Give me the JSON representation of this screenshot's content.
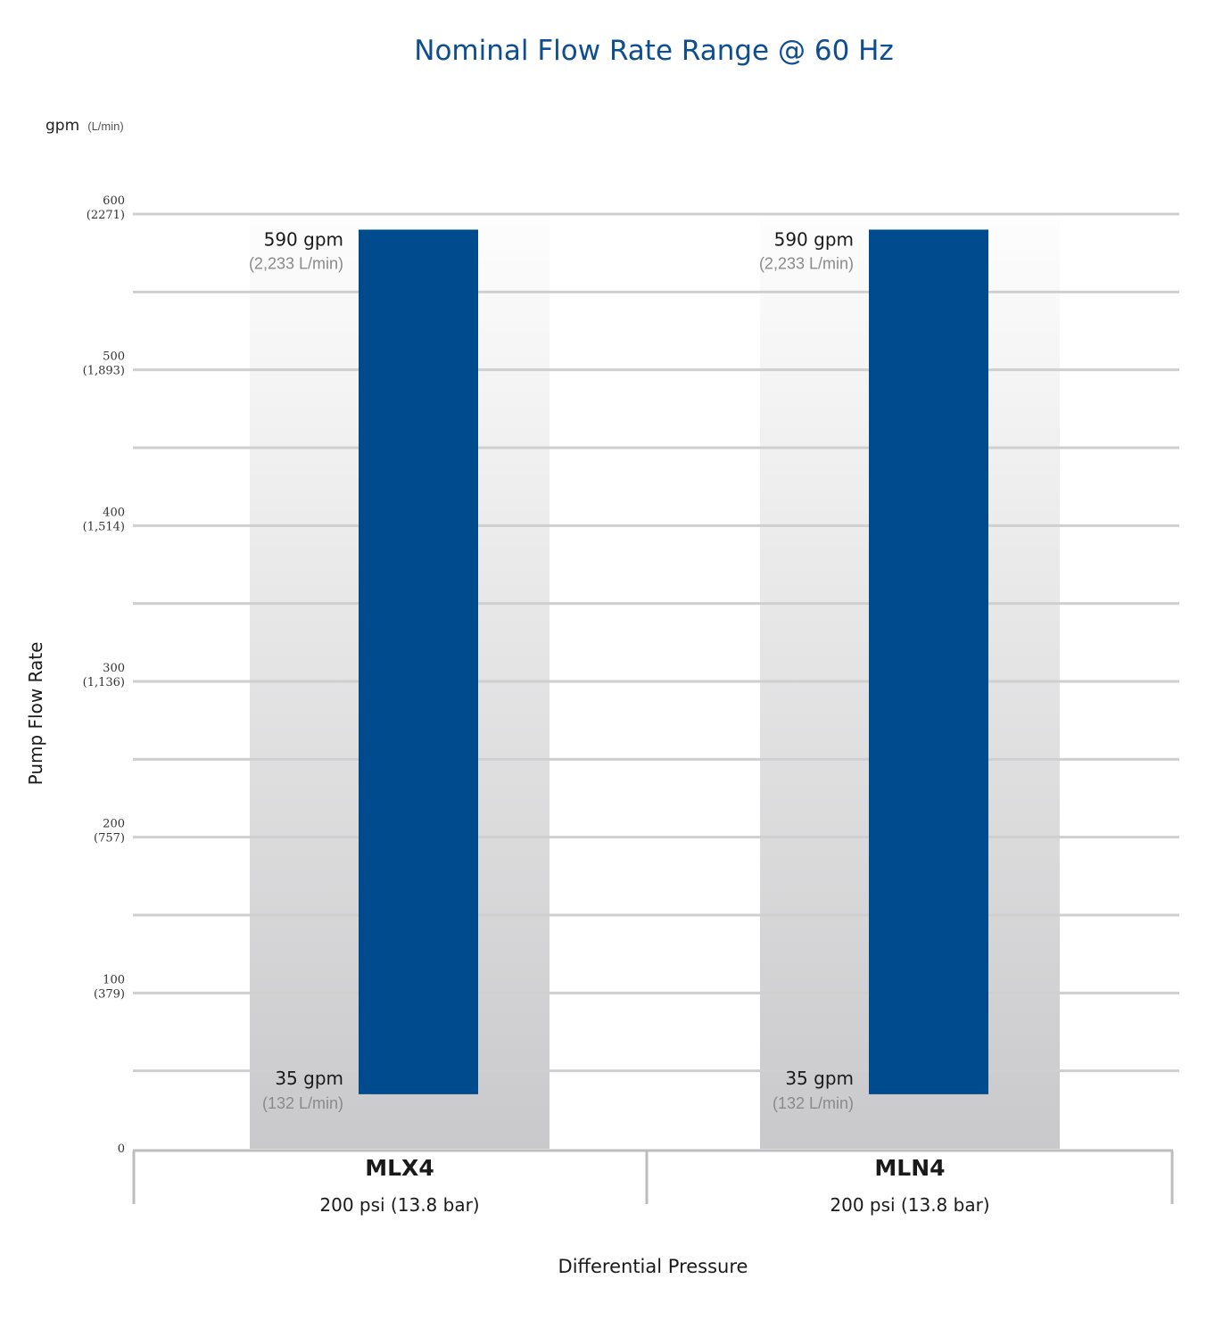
{
  "chart_data": {
    "type": "bar",
    "title": "Nominal Flow Rate Range @ 60 Hz",
    "unit_label": "gpm",
    "unit_label_secondary": "(L/min)",
    "ylabel": "Pump Flow Rate",
    "xlabel": "Differential Pressure",
    "ylim": [
      0,
      600
    ],
    "grid": true,
    "gridlines": [
      50,
      100,
      150,
      200,
      250,
      300,
      350,
      400,
      450,
      500,
      550,
      600
    ],
    "y_ticks": [
      {
        "value": 600,
        "label": "600",
        "sub": "(2271)"
      },
      {
        "value": 500,
        "label": "500",
        "sub": "(1,893)"
      },
      {
        "value": 400,
        "label": "400",
        "sub": "(1,514)"
      },
      {
        "value": 300,
        "label": "300",
        "sub": "(1,136)"
      },
      {
        "value": 200,
        "label": "200",
        "sub": "(757)"
      },
      {
        "value": 100,
        "label": "100",
        "sub": "(379)"
      },
      {
        "value": 0,
        "label": "0",
        "sub": ""
      }
    ],
    "bar_color": "#004b8d",
    "background_band_gradient": [
      "#fdfdfd",
      "#c9c9cb"
    ],
    "categories": [
      {
        "name": "MLX4",
        "sub": "200 psi (13.8 bar)",
        "min": 35,
        "max": 590,
        "min_label": "35 gpm",
        "min_sub": "(132 L/min)",
        "max_label": "590 gpm",
        "max_sub": "(2,233 L/min)"
      },
      {
        "name": "MLN4",
        "sub": "200 psi (13.8 bar)",
        "min": 35,
        "max": 590,
        "min_label": "35 gpm",
        "min_sub": "(132 L/min)",
        "max_label": "590 gpm",
        "max_sub": "(2,233 L/min)"
      }
    ]
  }
}
